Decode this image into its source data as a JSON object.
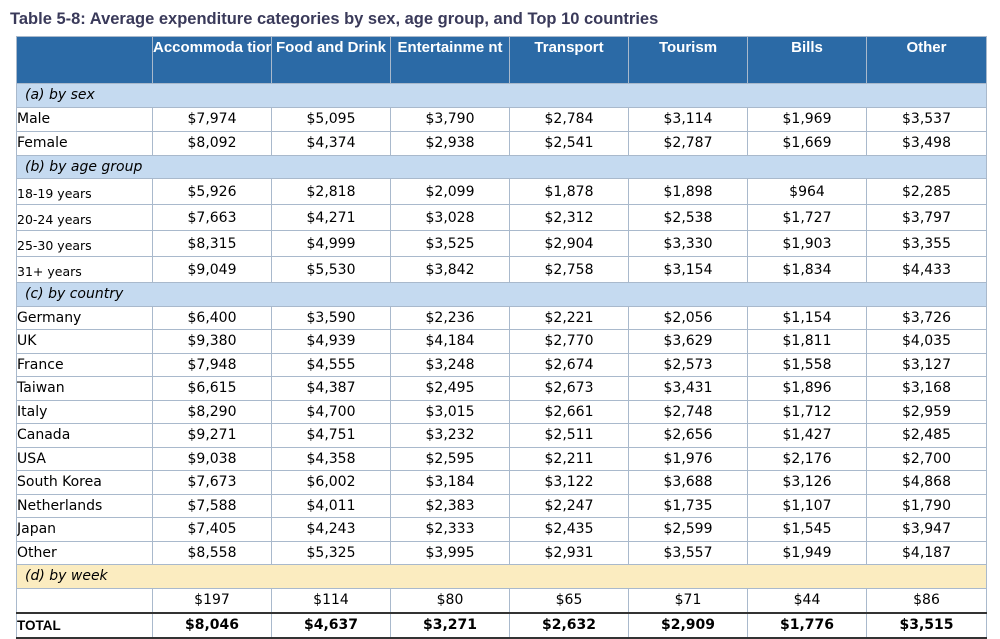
{
  "title": "Table 5-8: Average expenditure categories by sex, age group, and Top 10 countries",
  "columns": [
    "Accommoda tion",
    "Food and Drink",
    "Entertainme nt",
    "Transport",
    "Tourism",
    "Bills",
    "Other"
  ],
  "sections": [
    {
      "label": "(a) by sex",
      "kind": "sex",
      "rows": [
        {
          "label": "Male",
          "values": [
            "$7,974",
            "$5,095",
            "$3,790",
            "$2,784",
            "$3,114",
            "$1,969",
            "$3,537"
          ]
        },
        {
          "label": "Female",
          "values": [
            "$8,092",
            "$4,374",
            "$2,938",
            "$2,541",
            "$2,787",
            "$1,669",
            "$3,498"
          ]
        }
      ]
    },
    {
      "label": "(b) by age group",
      "kind": "age",
      "rows": [
        {
          "label": "18-19 years",
          "values": [
            "$5,926",
            "$2,818",
            "$2,099",
            "$1,878",
            "$1,898",
            "$964",
            "$2,285"
          ]
        },
        {
          "label": "20-24 years",
          "values": [
            "$7,663",
            "$4,271",
            "$3,028",
            "$2,312",
            "$2,538",
            "$1,727",
            "$3,797"
          ]
        },
        {
          "label": "25-30 years",
          "values": [
            "$8,315",
            "$4,999",
            "$3,525",
            "$2,904",
            "$3,330",
            "$1,903",
            "$3,355"
          ]
        },
        {
          "label": "31+ years",
          "values": [
            "$9,049",
            "$5,530",
            "$3,842",
            "$2,758",
            "$3,154",
            "$1,834",
            "$4,433"
          ]
        }
      ]
    },
    {
      "label": "(c) by country",
      "kind": "ctry",
      "rows": [
        {
          "label": "Germany",
          "values": [
            "$6,400",
            "$3,590",
            "$2,236",
            "$2,221",
            "$2,056",
            "$1,154",
            "$3,726"
          ]
        },
        {
          "label": "UK",
          "values": [
            "$9,380",
            "$4,939",
            "$4,184",
            "$2,770",
            "$3,629",
            "$1,811",
            "$4,035"
          ]
        },
        {
          "label": "France",
          "values": [
            "$7,948",
            "$4,555",
            "$3,248",
            "$2,674",
            "$2,573",
            "$1,558",
            "$3,127"
          ]
        },
        {
          "label": "Taiwan",
          "values": [
            "$6,615",
            "$4,387",
            "$2,495",
            "$2,673",
            "$3,431",
            "$1,896",
            "$3,168"
          ]
        },
        {
          "label": "Italy",
          "values": [
            "$8,290",
            "$4,700",
            "$3,015",
            "$2,661",
            "$2,748",
            "$1,712",
            "$2,959"
          ]
        },
        {
          "label": "Canada",
          "values": [
            "$9,271",
            "$4,751",
            "$3,232",
            "$2,511",
            "$2,656",
            "$1,427",
            "$2,485"
          ]
        },
        {
          "label": "USA",
          "values": [
            "$9,038",
            "$4,358",
            "$2,595",
            "$2,211",
            "$1,976",
            "$2,176",
            "$2,700"
          ]
        },
        {
          "label": "South Korea",
          "values": [
            "$7,673",
            "$6,002",
            "$3,184",
            "$3,122",
            "$3,688",
            "$3,126",
            "$4,868"
          ]
        },
        {
          "label": "Netherlands",
          "values": [
            "$7,588",
            "$4,011",
            "$2,383",
            "$2,247",
            "$1,735",
            "$1,107",
            "$1,790"
          ]
        },
        {
          "label": "Japan",
          "values": [
            "$7,405",
            "$4,243",
            "$2,333",
            "$2,435",
            "$2,599",
            "$1,545",
            "$3,947"
          ]
        },
        {
          "label": "Other",
          "values": [
            "$8,558",
            "$5,325",
            "$3,995",
            "$2,931",
            "$3,557",
            "$1,949",
            "$4,187"
          ]
        }
      ]
    },
    {
      "label": "(d) by week",
      "kind": "week",
      "rows": [
        {
          "label": "",
          "values": [
            "$197",
            "$114",
            "$80",
            "$65",
            "$71",
            "$44",
            "$86"
          ]
        }
      ]
    }
  ],
  "total": {
    "label": "TOTAL",
    "values": [
      "$8,046",
      "$4,637",
      "$3,271",
      "$2,632",
      "$2,909",
      "$1,776",
      "$3,515"
    ]
  },
  "colors": {
    "header_bg": "#2b6aa6",
    "section_bg": "#c5daf0",
    "week_bg": "#fbecc0",
    "title": "#3a3a5a"
  }
}
